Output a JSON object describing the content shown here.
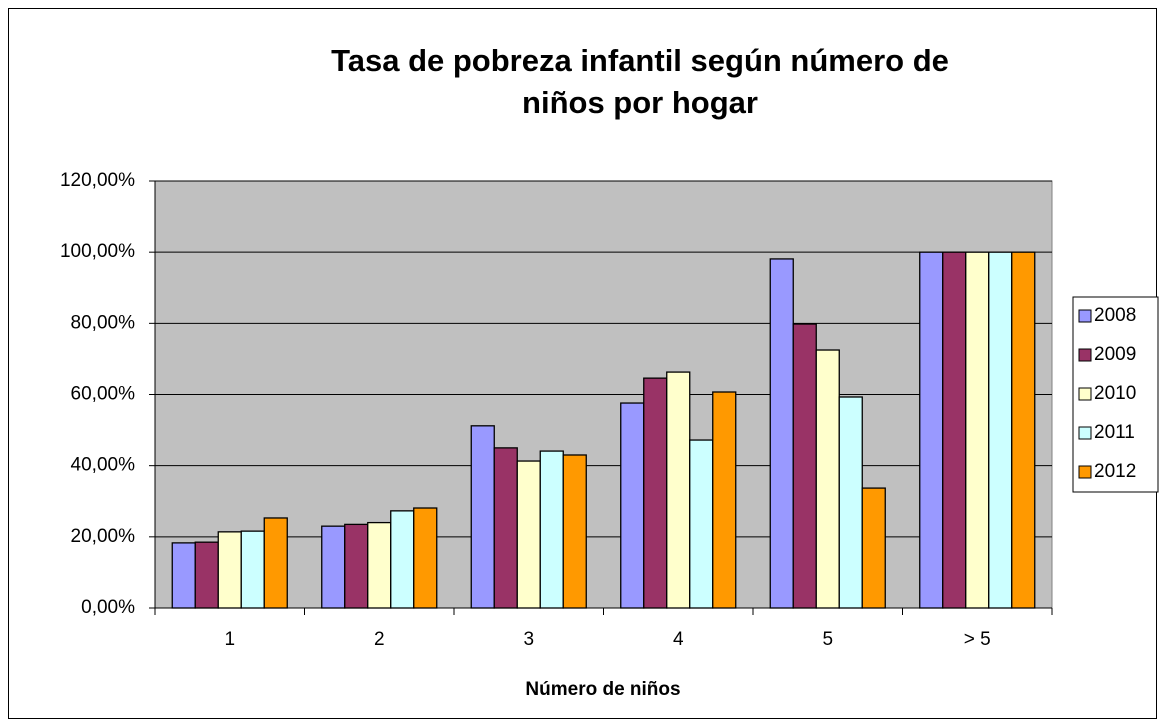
{
  "chart_data": {
    "type": "bar",
    "title": "Tasa de pobreza infantil según número de niños por hogar",
    "x_label": "Número de niños",
    "categories": [
      "1",
      "2",
      "3",
      "4",
      "5",
      "> 5"
    ],
    "series": [
      {
        "name": "2008",
        "color": "#9999ff",
        "values": [
          18.3,
          23,
          51.2,
          57.6,
          98.1,
          100
        ]
      },
      {
        "name": "2009",
        "color": "#993366",
        "values": [
          18.5,
          23.5,
          45,
          64.6,
          79.8,
          100
        ]
      },
      {
        "name": "2010",
        "color": "#ffffcc",
        "values": [
          21.4,
          24,
          41.3,
          66.3,
          72.5,
          100
        ]
      },
      {
        "name": "2011",
        "color": "#ccffff",
        "values": [
          21.6,
          27.3,
          44.1,
          47.2,
          59.3,
          100
        ]
      },
      {
        "name": "2012",
        "color": "#ff9900",
        "values": [
          25.3,
          28.1,
          43,
          60.7,
          33.7,
          100
        ]
      }
    ],
    "ylim": [
      0,
      120
    ],
    "yticks": [
      {
        "value": 0,
        "label": "0,00%"
      },
      {
        "value": 20,
        "label": "20,00%"
      },
      {
        "value": 40,
        "label": "40,00%"
      },
      {
        "value": 60,
        "label": "60,00%"
      },
      {
        "value": 80,
        "label": "80,00%"
      },
      {
        "value": 100,
        "label": "100,00%"
      },
      {
        "value": 120,
        "label": "120,00%"
      }
    ],
    "grid": true,
    "legend": "right",
    "plot_background": "#c0c0c0"
  }
}
